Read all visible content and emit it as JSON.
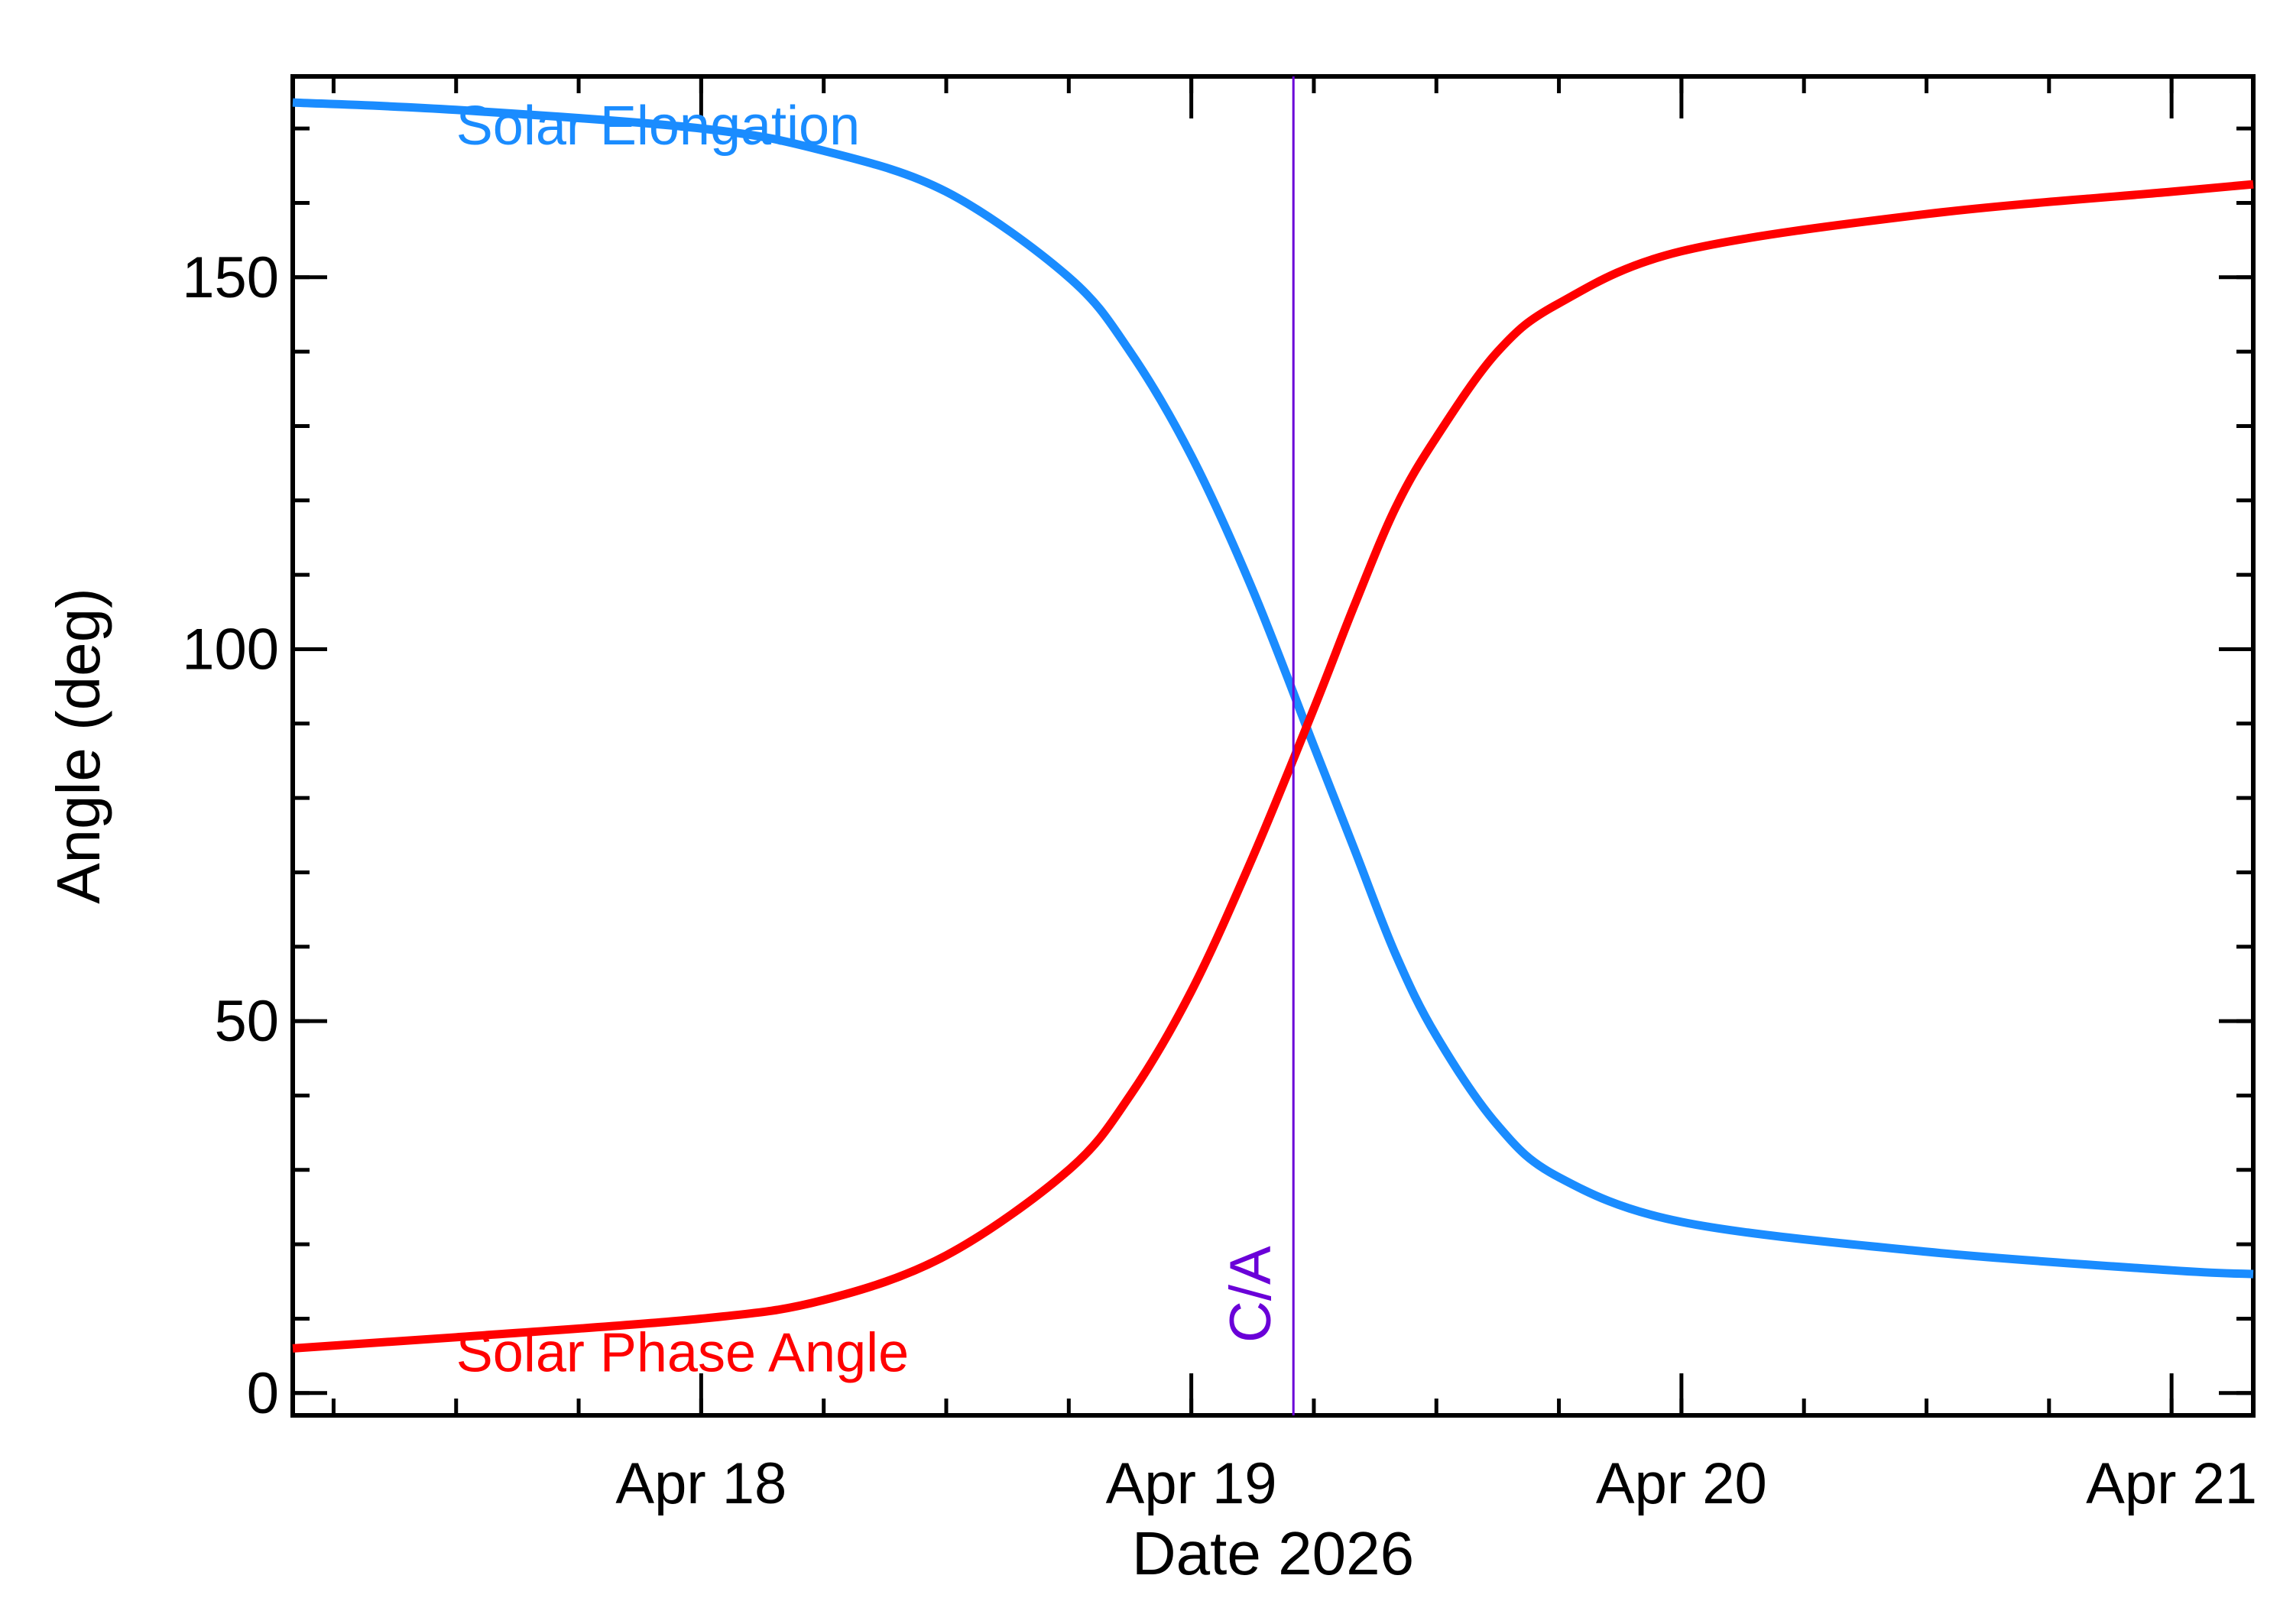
{
  "chart_data": {
    "type": "line",
    "xlabel": "Date 2026",
    "ylabel": "Angle (deg)",
    "xlim": [
      "2026-04-17 04:00",
      "2026-04-21 04:00"
    ],
    "ylim": [
      -3,
      177
    ],
    "x_ticks": [
      {
        "x": "2026-04-18",
        "label": "Apr 18"
      },
      {
        "x": "2026-04-19",
        "label": "Apr 19"
      },
      {
        "x": "2026-04-20",
        "label": "Apr 20"
      },
      {
        "x": "2026-04-21",
        "label": "Apr 21"
      }
    ],
    "y_ticks": [
      {
        "y": 0,
        "label": "0"
      },
      {
        "y": 50,
        "label": "50"
      },
      {
        "y": 100,
        "label": "100"
      },
      {
        "y": 150,
        "label": "150"
      }
    ],
    "y_minor_step": 10,
    "x_minor_step_hours": 6,
    "grid": false,
    "legend": "inline labels",
    "series": [
      {
        "name": "Solar Elongation",
        "color": "#1a8cff",
        "x": [
          "2026-04-17 04:00",
          "2026-04-17 12:00",
          "2026-04-18 00:00",
          "2026-04-18 06:00",
          "2026-04-18 12:00",
          "2026-04-18 18:00",
          "2026-04-18 21:00",
          "2026-04-19 00:00",
          "2026-04-19 03:00",
          "2026-04-19 06:00",
          "2026-04-19 08:00",
          "2026-04-19 10:00",
          "2026-04-19 12:00",
          "2026-04-19 15:00",
          "2026-04-19 18:00",
          "2026-04-20 00:00",
          "2026-04-20 12:00",
          "2026-04-21 00:00",
          "2026-04-21 04:00"
        ],
        "y": [
          173.5,
          172.5,
          170,
          167,
          161.5,
          150,
          140,
          126,
          108,
          87,
          73,
          59,
          48,
          36,
          29,
          23,
          19,
          16.5,
          16
        ]
      },
      {
        "name": "Solar Phase Angle",
        "color": "#ff0000",
        "x": [
          "2026-04-17 04:00",
          "2026-04-17 12:00",
          "2026-04-18 00:00",
          "2026-04-18 06:00",
          "2026-04-18 12:00",
          "2026-04-18 18:00",
          "2026-04-18 21:00",
          "2026-04-19 00:00",
          "2026-04-19 03:00",
          "2026-04-19 06:00",
          "2026-04-19 08:00",
          "2026-04-19 10:00",
          "2026-04-19 12:00",
          "2026-04-19 15:00",
          "2026-04-19 18:00",
          "2026-04-20 00:00",
          "2026-04-20 12:00",
          "2026-04-21 00:00",
          "2026-04-21 04:00"
        ],
        "y": [
          6,
          7.5,
          10,
          12.5,
          18.5,
          30,
          40,
          54,
          72,
          92,
          106,
          119,
          128.5,
          140,
          146.5,
          153.5,
          158.5,
          161.5,
          162.5
        ]
      }
    ],
    "annotations": [
      {
        "text": "Solar Elongation",
        "color": "#1a8cff",
        "x": "2026-04-17 12:00",
        "y": 173
      },
      {
        "text": "Solar Phase Angle",
        "color": "#ff0000",
        "x": "2026-04-17 12:00",
        "y": 6
      }
    ],
    "vline": {
      "label": "C/A",
      "color": "#6a00d8",
      "x": "2026-04-19 05:00"
    }
  }
}
